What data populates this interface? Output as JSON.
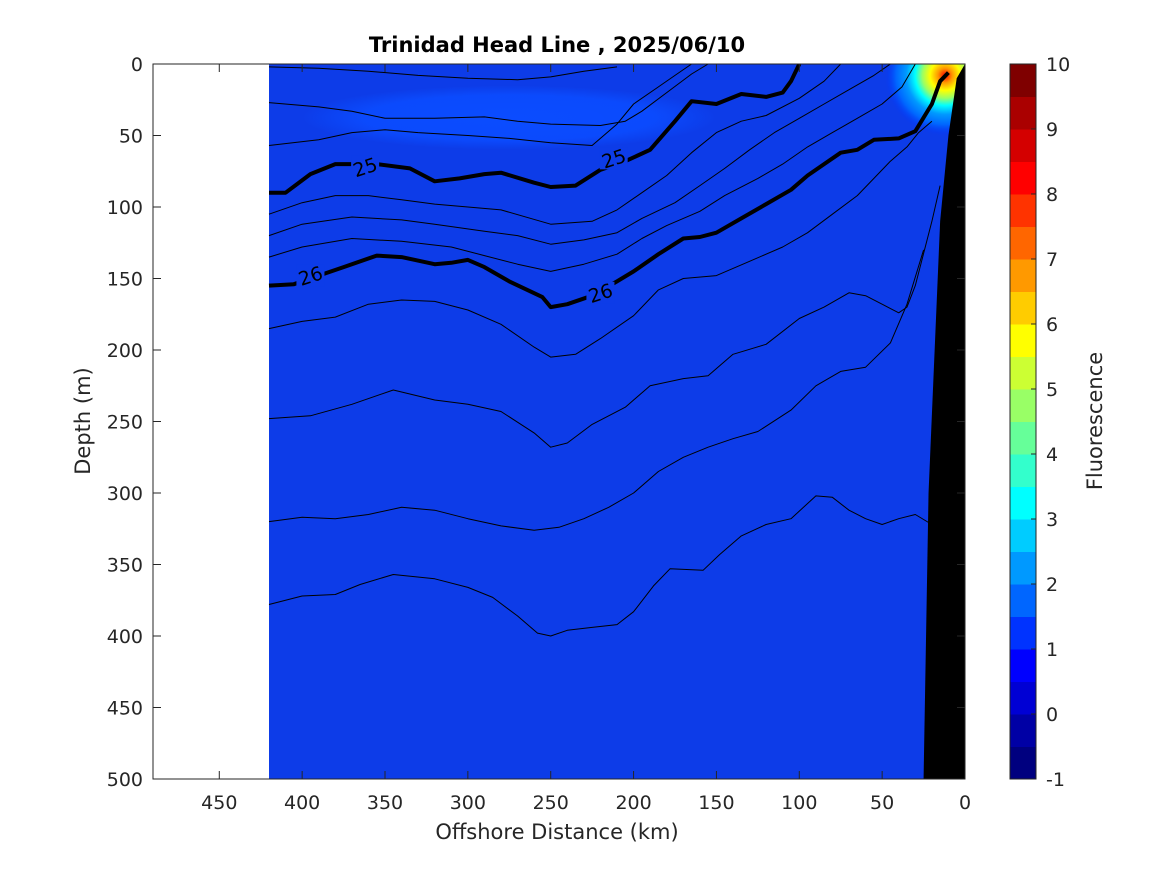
{
  "chart_data": {
    "type": "heatmap",
    "title": "Trinidad Head Line , 2025/06/10",
    "xlabel": "Offshore Distance (km)",
    "ylabel": "Depth (m)",
    "xlim": [
      490,
      0
    ],
    "ylim": [
      500,
      0
    ],
    "x_ticks": [
      450,
      400,
      350,
      300,
      250,
      200,
      150,
      100,
      50,
      0
    ],
    "y_ticks": [
      0,
      50,
      100,
      150,
      200,
      250,
      300,
      350,
      400,
      450,
      500
    ],
    "colorbar": {
      "label": "Fluorescence",
      "ticks": [
        -1,
        0,
        1,
        2,
        3,
        4,
        5,
        6,
        7,
        8,
        9,
        10
      ],
      "range": [
        -1,
        10
      ],
      "colormap": "jet",
      "colors": [
        "#00007f",
        "#0000a5",
        "#0000d4",
        "#0000ff",
        "#0033ff",
        "#0066ff",
        "#0099ff",
        "#00ccff",
        "#00ffff",
        "#33ffcc",
        "#66ff99",
        "#99ff66",
        "#ccff33",
        "#ffff00",
        "#ffcc00",
        "#ff9900",
        "#ff6600",
        "#ff3300",
        "#ff0000",
        "#d40000",
        "#aa0000",
        "#7f0000"
      ]
    },
    "data_extent_x": [
      420,
      0
    ],
    "background_level": 0.3,
    "fluorescence_features": [
      {
        "name": "subsurface patch",
        "x_range": [
          400,
          150
        ],
        "depth_range": [
          15,
          60
        ],
        "level": 1.2
      },
      {
        "name": "nearshore maximum",
        "x": 12,
        "depth": 8,
        "peak": 9
      }
    ],
    "density_contours": [
      {
        "sigma_theta": 24.5,
        "thick": false,
        "points": [
          [
            420,
            2
          ],
          [
            390,
            3
          ],
          [
            360,
            5
          ],
          [
            330,
            8
          ],
          [
            300,
            10
          ],
          [
            270,
            11
          ],
          [
            250,
            9
          ],
          [
            230,
            5
          ],
          [
            210,
            2
          ]
        ]
      },
      {
        "sigma_theta": 24.7,
        "thick": false,
        "points": [
          [
            420,
            27
          ],
          [
            390,
            30
          ],
          [
            370,
            33
          ],
          [
            350,
            38
          ],
          [
            320,
            38
          ],
          [
            290,
            37
          ],
          [
            270,
            40
          ],
          [
            250,
            42
          ],
          [
            220,
            43
          ],
          [
            205,
            40
          ],
          [
            195,
            33
          ],
          [
            180,
            20
          ],
          [
            165,
            7
          ],
          [
            155,
            0
          ]
        ]
      },
      {
        "sigma_theta": 24.9,
        "thick": false,
        "points": [
          [
            420,
            57
          ],
          [
            390,
            53
          ],
          [
            370,
            48
          ],
          [
            350,
            46
          ],
          [
            330,
            48
          ],
          [
            300,
            50
          ],
          [
            275,
            52
          ],
          [
            250,
            55
          ],
          [
            225,
            57
          ],
          [
            210,
            42
          ],
          [
            200,
            28
          ],
          [
            185,
            16
          ],
          [
            175,
            8
          ],
          [
            165,
            0
          ]
        ]
      },
      {
        "sigma_theta": 25,
        "thick": true,
        "label_positions": [
          [
            362,
            72
          ],
          [
            212,
            66
          ]
        ],
        "points": [
          [
            420,
            90
          ],
          [
            410,
            90
          ],
          [
            395,
            77
          ],
          [
            380,
            70
          ],
          [
            355,
            70
          ],
          [
            335,
            73
          ],
          [
            320,
            82
          ],
          [
            305,
            80
          ],
          [
            290,
            77
          ],
          [
            280,
            76
          ],
          [
            260,
            83
          ],
          [
            250,
            86
          ],
          [
            235,
            85
          ],
          [
            220,
            74
          ],
          [
            205,
            68
          ],
          [
            190,
            60
          ],
          [
            175,
            40
          ],
          [
            165,
            26
          ],
          [
            150,
            28
          ],
          [
            135,
            21
          ],
          [
            120,
            23
          ],
          [
            110,
            20
          ],
          [
            105,
            12
          ],
          [
            100,
            0
          ]
        ]
      },
      {
        "sigma_theta": 25.2,
        "thick": false,
        "points": [
          [
            420,
            105
          ],
          [
            400,
            97
          ],
          [
            380,
            92
          ],
          [
            360,
            92
          ],
          [
            340,
            95
          ],
          [
            320,
            98
          ],
          [
            300,
            100
          ],
          [
            280,
            102
          ],
          [
            250,
            112
          ],
          [
            225,
            110
          ],
          [
            210,
            102
          ],
          [
            195,
            90
          ],
          [
            180,
            78
          ],
          [
            165,
            62
          ],
          [
            150,
            48
          ],
          [
            135,
            40
          ],
          [
            120,
            36
          ],
          [
            100,
            24
          ],
          [
            85,
            12
          ],
          [
            75,
            0
          ]
        ]
      },
      {
        "sigma_theta": 25.4,
        "thick": false,
        "points": [
          [
            420,
            120
          ],
          [
            400,
            112
          ],
          [
            370,
            107
          ],
          [
            340,
            109
          ],
          [
            320,
            112
          ],
          [
            290,
            117
          ],
          [
            270,
            120
          ],
          [
            250,
            126
          ],
          [
            230,
            123
          ],
          [
            210,
            118
          ],
          [
            195,
            108
          ],
          [
            175,
            97
          ],
          [
            160,
            85
          ],
          [
            145,
            73
          ],
          [
            130,
            60
          ],
          [
            115,
            48
          ],
          [
            100,
            38
          ],
          [
            85,
            28
          ],
          [
            70,
            18
          ],
          [
            55,
            8
          ],
          [
            45,
            0
          ]
        ]
      },
      {
        "sigma_theta": 25.6,
        "thick": false,
        "points": [
          [
            420,
            135
          ],
          [
            400,
            128
          ],
          [
            370,
            122
          ],
          [
            340,
            124
          ],
          [
            310,
            128
          ],
          [
            290,
            134
          ],
          [
            270,
            140
          ],
          [
            250,
            145
          ],
          [
            230,
            140
          ],
          [
            210,
            133
          ],
          [
            195,
            122
          ],
          [
            180,
            113
          ],
          [
            160,
            103
          ],
          [
            145,
            92
          ],
          [
            125,
            80
          ],
          [
            110,
            70
          ],
          [
            95,
            58
          ],
          [
            80,
            48
          ],
          [
            65,
            38
          ],
          [
            50,
            28
          ],
          [
            38,
            16
          ],
          [
            30,
            0
          ]
        ]
      },
      {
        "sigma_theta": 26,
        "thick": true,
        "label_positions": [
          [
            395,
            148
          ],
          [
            220,
            160
          ]
        ],
        "points": [
          [
            420,
            155
          ],
          [
            405,
            154
          ],
          [
            390,
            148
          ],
          [
            375,
            142
          ],
          [
            355,
            134
          ],
          [
            340,
            135
          ],
          [
            320,
            140
          ],
          [
            310,
            139
          ],
          [
            300,
            137
          ],
          [
            290,
            142
          ],
          [
            275,
            152
          ],
          [
            255,
            163
          ],
          [
            250,
            170
          ],
          [
            240,
            168
          ],
          [
            225,
            162
          ],
          [
            210,
            152
          ],
          [
            200,
            145
          ],
          [
            185,
            133
          ],
          [
            170,
            122
          ],
          [
            160,
            121
          ],
          [
            150,
            118
          ],
          [
            135,
            108
          ],
          [
            120,
            98
          ],
          [
            105,
            88
          ],
          [
            95,
            78
          ],
          [
            85,
            70
          ],
          [
            75,
            62
          ],
          [
            65,
            60
          ],
          [
            55,
            53
          ],
          [
            40,
            52
          ],
          [
            30,
            47
          ],
          [
            20,
            28
          ],
          [
            15,
            12
          ],
          [
            10,
            6
          ]
        ]
      },
      {
        "sigma_theta": 26.2,
        "thick": false,
        "points": [
          [
            420,
            185
          ],
          [
            400,
            180
          ],
          [
            380,
            177
          ],
          [
            360,
            168
          ],
          [
            340,
            165
          ],
          [
            320,
            166
          ],
          [
            300,
            172
          ],
          [
            280,
            182
          ],
          [
            260,
            198
          ],
          [
            250,
            205
          ],
          [
            235,
            203
          ],
          [
            220,
            192
          ],
          [
            200,
            176
          ],
          [
            185,
            158
          ],
          [
            170,
            150
          ],
          [
            150,
            148
          ],
          [
            130,
            138
          ],
          [
            110,
            128
          ],
          [
            95,
            118
          ],
          [
            80,
            105
          ],
          [
            65,
            92
          ],
          [
            55,
            80
          ],
          [
            45,
            68
          ],
          [
            35,
            58
          ],
          [
            28,
            48
          ],
          [
            20,
            40
          ]
        ]
      },
      {
        "sigma_theta": 26.4,
        "thick": false,
        "points": [
          [
            420,
            248
          ],
          [
            395,
            246
          ],
          [
            370,
            238
          ],
          [
            345,
            228
          ],
          [
            320,
            235
          ],
          [
            300,
            238
          ],
          [
            280,
            243
          ],
          [
            260,
            258
          ],
          [
            250,
            268
          ],
          [
            240,
            265
          ],
          [
            225,
            252
          ],
          [
            205,
            240
          ],
          [
            190,
            225
          ],
          [
            170,
            220
          ],
          [
            155,
            218
          ],
          [
            140,
            203
          ],
          [
            120,
            196
          ],
          [
            100,
            178
          ],
          [
            85,
            170
          ],
          [
            70,
            160
          ],
          [
            60,
            162
          ],
          [
            50,
            168
          ],
          [
            40,
            174
          ],
          [
            35,
            170
          ],
          [
            30,
            155
          ],
          [
            20,
            110
          ],
          [
            15,
            85
          ]
        ]
      },
      {
        "sigma_theta": 26.6,
        "thick": false,
        "points": [
          [
            420,
            320
          ],
          [
            400,
            317
          ],
          [
            380,
            318
          ],
          [
            360,
            315
          ],
          [
            340,
            310
          ],
          [
            320,
            312
          ],
          [
            300,
            318
          ],
          [
            280,
            323
          ],
          [
            260,
            326
          ],
          [
            245,
            324
          ],
          [
            230,
            318
          ],
          [
            215,
            310
          ],
          [
            200,
            300
          ],
          [
            185,
            285
          ],
          [
            170,
            275
          ],
          [
            155,
            268
          ],
          [
            140,
            262
          ],
          [
            125,
            257
          ],
          [
            105,
            242
          ],
          [
            90,
            225
          ],
          [
            75,
            215
          ],
          [
            60,
            212
          ],
          [
            45,
            195
          ],
          [
            35,
            168
          ],
          [
            25,
            130
          ]
        ]
      },
      {
        "sigma_theta": 26.8,
        "thick": false,
        "points": [
          [
            420,
            378
          ],
          [
            400,
            372
          ],
          [
            380,
            371
          ],
          [
            365,
            364
          ],
          [
            345,
            357
          ],
          [
            320,
            360
          ],
          [
            300,
            366
          ],
          [
            285,
            373
          ],
          [
            270,
            386
          ],
          [
            258,
            398
          ],
          [
            250,
            400
          ],
          [
            240,
            396
          ],
          [
            225,
            394
          ],
          [
            210,
            392
          ],
          [
            200,
            383
          ],
          [
            188,
            365
          ],
          [
            178,
            353
          ],
          [
            158,
            354
          ],
          [
            148,
            343
          ],
          [
            135,
            330
          ],
          [
            120,
            322
          ],
          [
            105,
            318
          ],
          [
            90,
            302
          ],
          [
            80,
            303
          ],
          [
            70,
            312
          ],
          [
            60,
            318
          ],
          [
            50,
            322
          ],
          [
            40,
            318
          ],
          [
            30,
            315
          ],
          [
            20,
            322
          ]
        ]
      }
    ]
  }
}
